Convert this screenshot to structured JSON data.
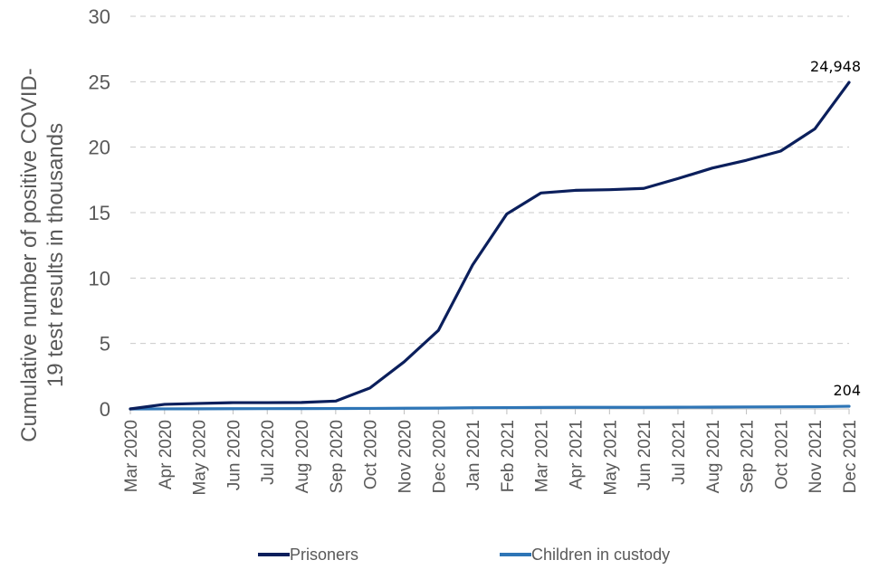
{
  "chart_data": {
    "type": "line",
    "title": "",
    "ylabel": "Cumulative number of positive  COVID-19 test results in thousands",
    "ylabel_lines": [
      "Cumulative number of positive  COVID-",
      "19 test results in thousands"
    ],
    "xlabel": "",
    "ylim": [
      0,
      30
    ],
    "yticks": [
      0,
      5,
      10,
      15,
      20,
      25,
      30
    ],
    "grid": "horizontal dashed",
    "legend_position": "bottom",
    "categories": [
      "Mar 2020",
      "Apr 2020",
      "May 2020",
      "Jun 2020",
      "Jul 2020",
      "Aug 2020",
      "Sep 2020",
      "Oct 2020",
      "Nov 2020",
      "Dec 2020",
      "Jan 2021",
      "Feb 2021",
      "Mar 2021",
      "Apr 2021",
      "May 2021",
      "Jun 2021",
      "Jul 2021",
      "Aug 2021",
      "Sep 2021",
      "Oct 2021",
      "Nov 2021",
      "Dec 2021"
    ],
    "series": [
      {
        "name": "Prisoners",
        "color": "#0b1f5c",
        "values": [
          0.0,
          0.35,
          0.42,
          0.48,
          0.48,
          0.49,
          0.6,
          1.6,
          3.6,
          6.0,
          11.0,
          14.9,
          16.5,
          16.7,
          16.75,
          16.85,
          17.6,
          18.4,
          19.0,
          19.7,
          21.4,
          24.948
        ],
        "end_label": "24,948"
      },
      {
        "name": "Children in custody",
        "color": "#2e75b6",
        "values": [
          0.0,
          0.005,
          0.01,
          0.015,
          0.02,
          0.025,
          0.03,
          0.04,
          0.05,
          0.06,
          0.09,
          0.1,
          0.11,
          0.12,
          0.12,
          0.12,
          0.13,
          0.14,
          0.15,
          0.16,
          0.17,
          0.204
        ],
        "end_label": "204"
      }
    ]
  }
}
